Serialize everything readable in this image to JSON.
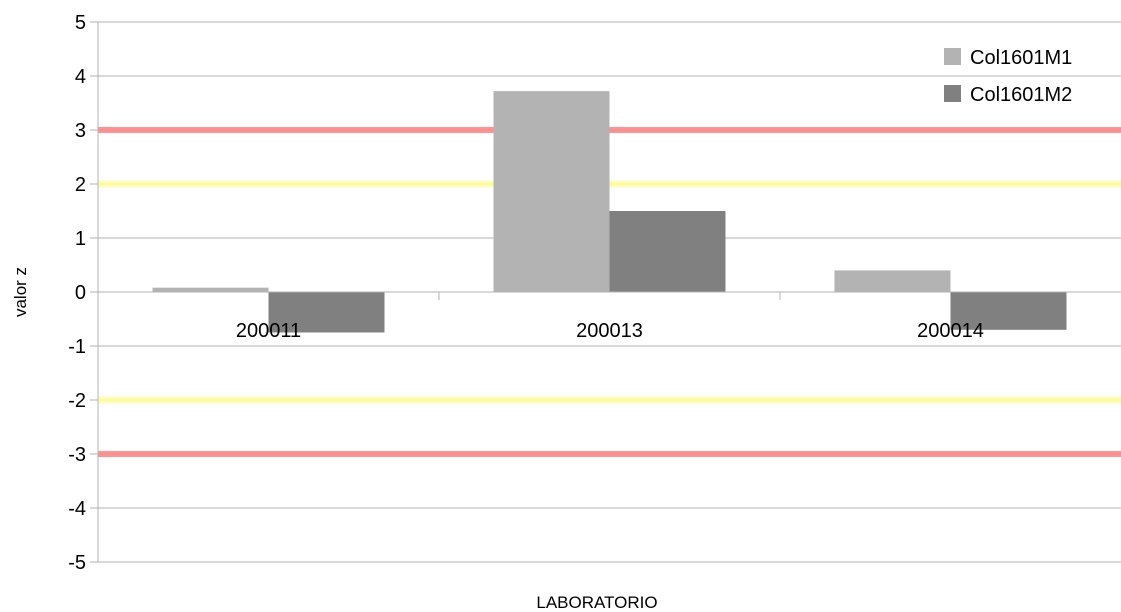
{
  "chart_data": {
    "type": "bar",
    "categories": [
      "200011",
      "200013",
      "200014"
    ],
    "series": [
      {
        "name": "Col1601M1",
        "values": [
          0.08,
          3.72,
          0.4
        ],
        "color": "#b3b3b3"
      },
      {
        "name": "Col1601M2",
        "values": [
          -0.75,
          1.5,
          -0.7
        ],
        "color": "#808080"
      }
    ],
    "xlabel": "LABORATORIO",
    "ylabel": "valor z",
    "ylim": [
      -5,
      5
    ],
    "yticks": [
      5,
      4,
      3,
      2,
      1,
      0,
      -1,
      -2,
      -3,
      -4,
      -5
    ],
    "grid": true,
    "legend": "top-right",
    "reference_lines": [
      {
        "value": 3,
        "color": "#ff8080"
      },
      {
        "value": -3,
        "color": "#ff8080"
      },
      {
        "value": 2,
        "color": "#ffff99"
      },
      {
        "value": -2,
        "color": "#ffff99"
      }
    ]
  }
}
